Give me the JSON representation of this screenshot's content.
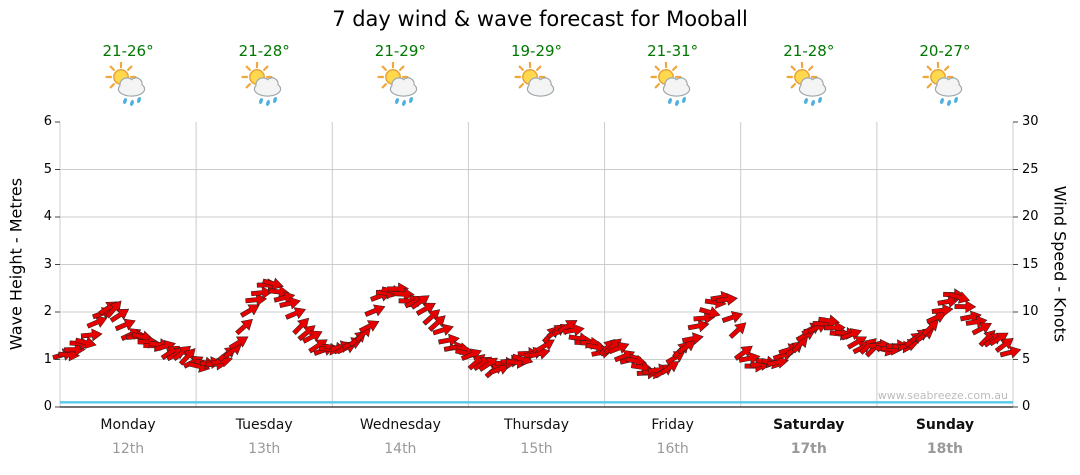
{
  "title": "7 day wind & wave forecast for Mooball",
  "watermark": "www.seabreeze.com.au",
  "colors": {
    "arrow": "#e60000",
    "arrow_outline": "#222222",
    "temperature": "#007700",
    "day_label": "#111111",
    "date_label": "#999999",
    "grid": "#cccccc",
    "axis": "#444444",
    "wave_line": "#58c8e8",
    "watermark": "#bcbcbc",
    "background": "#ffffff"
  },
  "axes": {
    "left_title": "Wave Height - Metres",
    "right_title": "Wind Speed - Knots",
    "left_ticks": [
      0,
      1,
      2,
      3,
      4,
      5,
      6
    ],
    "right_ticks": [
      0,
      5,
      10,
      15,
      20,
      25,
      30
    ]
  },
  "chart_data": {
    "type": "line",
    "title": "7 day wind & wave forecast for Mooball",
    "ylabel": "Wave Height - Metres",
    "y2label": "Wind Speed - Knots",
    "ylim": [
      0,
      6
    ],
    "y2lim": [
      0,
      30
    ],
    "grid": true,
    "series_info": "wind_knots plotted as red direction arrows against right axis (2-hourly); wave_m plotted as cyan line against left axis",
    "days": [
      {
        "label": "Monday",
        "date": "12th",
        "temp": "21-26°",
        "icon": "showers",
        "weekend": false,
        "wave_m": 0.1,
        "wind_knots": [
          5.5,
          6,
          7,
          9,
          11,
          9,
          7.5,
          7,
          6.5,
          6,
          5.5,
          5
        ]
      },
      {
        "label": "Tuesday",
        "date": "13th",
        "temp": "21-28°",
        "icon": "showers",
        "weekend": false,
        "wave_m": 0.1,
        "wind_knots": [
          4.5,
          4.5,
          5,
          6,
          9,
          12,
          13,
          12,
          10,
          8,
          6.5,
          6
        ]
      },
      {
        "label": "Wednesday",
        "date": "14th",
        "temp": "21-29°",
        "icon": "showers",
        "weekend": false,
        "wave_m": 0.1,
        "wind_knots": [
          6,
          6.5,
          7,
          9,
          12,
          12.5,
          11.5,
          11,
          10,
          8,
          6.5,
          5.5
        ]
      },
      {
        "label": "Thursday",
        "date": "15th",
        "temp": "19-29°",
        "icon": "partly-cloudy",
        "weekend": false,
        "wave_m": 0.1,
        "wind_knots": [
          5.5,
          4.5,
          4,
          4.5,
          5,
          5.5,
          6,
          8,
          8.5,
          7.5,
          6.5,
          6
        ]
      },
      {
        "label": "Friday",
        "date": "16th",
        "temp": "21-31°",
        "icon": "showers",
        "weekend": false,
        "wave_m": 0.1,
        "wind_knots": [
          6.5,
          6,
          5,
          4,
          3.5,
          4,
          5.5,
          7,
          9,
          11,
          11.5,
          8
        ]
      },
      {
        "label": "Saturday",
        "date": "17th",
        "temp": "21-28°",
        "icon": "showers",
        "weekend": true,
        "wave_m": 0.1,
        "wind_knots": [
          5.5,
          4.5,
          4.5,
          5,
          6,
          7,
          8.5,
          9,
          8,
          7.5,
          6.5,
          6
        ]
      },
      {
        "label": "Sunday",
        "date": "18th",
        "temp": "20-27°",
        "icon": "showers",
        "weekend": true,
        "wave_m": 0.1,
        "wind_knots": [
          6.5,
          6,
          6.5,
          7,
          8,
          9.5,
          12,
          11,
          9,
          7.5,
          7,
          6
        ]
      }
    ]
  }
}
